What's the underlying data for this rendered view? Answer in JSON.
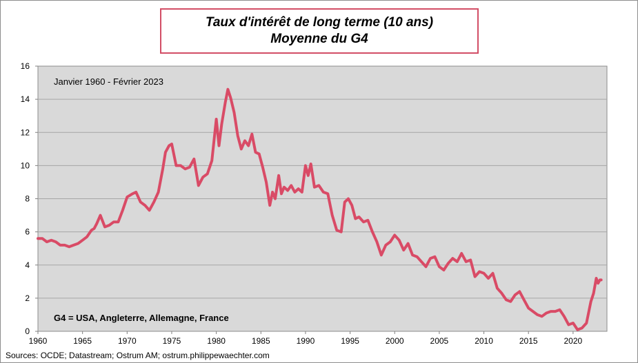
{
  "chart_data": {
    "type": "line",
    "title": "Taux d'intérêt de long terme (10 ans)",
    "subtitle": "Moyenne du G4",
    "annotation_period": "Janvier 1960 - Février 2023",
    "annotation_countries": "G4 = USA, Angleterre, Allemagne, France",
    "source": "Sources: OCDE; Datastream; Ostrum AM; ostrum.philippewaechter.com",
    "xlim": [
      1960,
      2023.8
    ],
    "ylim": [
      0,
      16
    ],
    "x_ticks": [
      1960,
      1965,
      1970,
      1975,
      1980,
      1985,
      1990,
      1995,
      2000,
      2005,
      2010,
      2015,
      2020
    ],
    "y_ticks": [
      0,
      2,
      4,
      6,
      8,
      10,
      12,
      14,
      16
    ],
    "grid": "horizontal",
    "series_color": "#d94b66",
    "plot_background": "#d9d9d9",
    "x": [
      1960,
      1960.5,
      1961,
      1961.5,
      1962,
      1962.5,
      1963,
      1963.5,
      1964,
      1964.5,
      1965,
      1965.5,
      1966,
      1966.3,
      1966.6,
      1967,
      1967.5,
      1968,
      1968.5,
      1969,
      1969.5,
      1970,
      1970.3,
      1970.6,
      1971,
      1971.5,
      1972,
      1972.5,
      1973,
      1973.5,
      1974,
      1974.3,
      1974.7,
      1975,
      1975.5,
      1976,
      1976.5,
      1977,
      1977.5,
      1978,
      1978.5,
      1979,
      1979.5,
      1980,
      1980.3,
      1980.6,
      1981,
      1981.3,
      1981.6,
      1982,
      1982.4,
      1982.8,
      1983.2,
      1983.6,
      1984,
      1984.4,
      1984.8,
      1985.2,
      1985.6,
      1986,
      1986.3,
      1986.6,
      1987,
      1987.3,
      1987.6,
      1988,
      1988.4,
      1988.8,
      1989.2,
      1989.6,
      1990,
      1990.3,
      1990.6,
      1991,
      1991.5,
      1992,
      1992.5,
      1993,
      1993.5,
      1994,
      1994.4,
      1994.8,
      1995.2,
      1995.6,
      1996,
      1996.5,
      1997,
      1997.5,
      1998,
      1998.5,
      1999,
      1999.5,
      2000,
      2000.5,
      2001,
      2001.5,
      2002,
      2002.5,
      2003,
      2003.5,
      2004,
      2004.5,
      2005,
      2005.5,
      2006,
      2006.5,
      2007,
      2007.5,
      2008,
      2008.5,
      2009,
      2009.5,
      2010,
      2010.5,
      2011,
      2011.5,
      2012,
      2012.5,
      2013,
      2013.5,
      2014,
      2014.5,
      2015,
      2015.5,
      2016,
      2016.5,
      2017,
      2017.5,
      2018,
      2018.5,
      2019,
      2019.5,
      2020,
      2020.5,
      2021,
      2021.5,
      2022,
      2022.3,
      2022.6,
      2022.8,
      2023,
      2023.15
    ],
    "values": [
      5.6,
      5.6,
      5.4,
      5.5,
      5.4,
      5.2,
      5.2,
      5.1,
      5.2,
      5.3,
      5.5,
      5.7,
      6.1,
      6.2,
      6.5,
      7.0,
      6.3,
      6.4,
      6.6,
      6.6,
      7.3,
      8.1,
      8.2,
      8.3,
      8.4,
      7.8,
      7.6,
      7.3,
      7.8,
      8.4,
      9.8,
      10.8,
      11.2,
      11.3,
      10.0,
      10.0,
      9.8,
      9.9,
      10.4,
      8.8,
      9.3,
      9.5,
      10.3,
      12.8,
      11.2,
      12.5,
      13.8,
      14.6,
      14.1,
      13.2,
      11.8,
      11.0,
      11.5,
      11.2,
      11.9,
      10.8,
      10.7,
      9.9,
      9.0,
      7.6,
      8.4,
      8.0,
      9.4,
      8.3,
      8.7,
      8.5,
      8.8,
      8.4,
      8.6,
      8.4,
      10.0,
      9.4,
      10.1,
      8.7,
      8.8,
      8.4,
      8.3,
      7.0,
      6.1,
      6.0,
      7.8,
      8.0,
      7.6,
      6.8,
      6.9,
      6.6,
      6.7,
      6.0,
      5.4,
      4.6,
      5.2,
      5.4,
      5.8,
      5.5,
      4.9,
      5.3,
      4.6,
      4.5,
      4.2,
      3.9,
      4.4,
      4.5,
      3.9,
      3.7,
      4.1,
      4.4,
      4.2,
      4.7,
      4.2,
      4.3,
      3.3,
      3.6,
      3.5,
      3.2,
      3.5,
      2.6,
      2.3,
      1.9,
      1.8,
      2.2,
      2.4,
      1.9,
      1.4,
      1.2,
      1.0,
      0.9,
      1.1,
      1.2,
      1.2,
      1.3,
      0.9,
      0.4,
      0.5,
      0.1,
      0.2,
      0.5,
      1.8,
      2.3,
      3.2,
      2.9,
      3.1,
      3.1
    ]
  }
}
